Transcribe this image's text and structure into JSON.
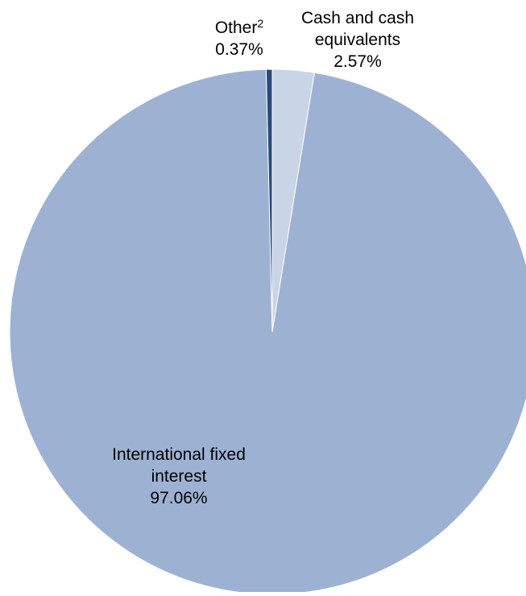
{
  "chart_data": {
    "type": "pie",
    "title": "",
    "slices": [
      {
        "label_lines": [
          "Cash and cash",
          "equivalents"
        ],
        "value_text": "2.57%",
        "value": 2.57,
        "color": "#C9D4E6"
      },
      {
        "label_lines": [
          "International fixed",
          "interest"
        ],
        "value_text": "97.06%",
        "value": 97.06,
        "color": "#9DB2D3"
      },
      {
        "label_lines": [
          "Other"
        ],
        "label_superscript": "2",
        "value_text": "0.37%",
        "value": 0.37,
        "color": "#2A4A7B"
      }
    ],
    "legend": "none"
  }
}
